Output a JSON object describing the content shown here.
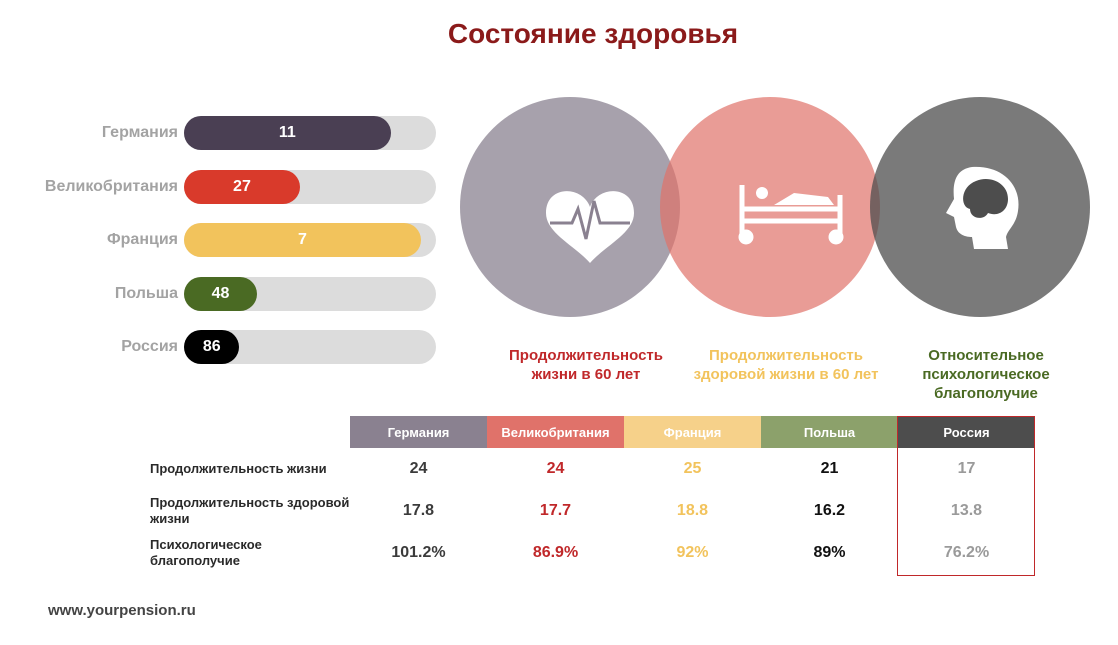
{
  "title": "Состояние здоровья",
  "footer": "www.yourpension.ru",
  "chart_data": [
    {
      "type": "bar",
      "orientation": "horizontal",
      "categories": [
        "Германия",
        "Великобритания",
        "Франция",
        "Польша",
        "Россия"
      ],
      "values": [
        11,
        27,
        7,
        48,
        86
      ],
      "bar_fill_fraction": [
        0.82,
        0.46,
        0.94,
        0.29,
        0.22
      ],
      "colors": [
        "#4a3f53",
        "#d93a2b",
        "#f2c35c",
        "#4a6a23",
        "#000000"
      ]
    },
    {
      "type": "table",
      "columns": [
        "Германия",
        "Великобритания",
        "Франция",
        "Польша",
        "Россия"
      ],
      "column_colors": [
        "#8a8190",
        "#e0726a",
        "#f6d18a",
        "#8ca16b",
        "#4d4d4d"
      ],
      "value_colors": [
        "#3b3b3b",
        "#c0282a",
        "#f2c35c",
        "#111111",
        "#9a9a9a"
      ],
      "rows": [
        {
          "label": "Продолжительность жизни",
          "values": [
            "24",
            "24",
            "25",
            "21",
            "17"
          ]
        },
        {
          "label": "Продолжительность здоровой жизни",
          "values": [
            "17.8",
            "17.7",
            "18.8",
            "16.2",
            "13.8"
          ]
        },
        {
          "label": "Психологическое благополучие",
          "values": [
            "101.2%",
            "86.9%",
            "92%",
            "89%",
            "76.2%"
          ]
        }
      ],
      "highlighted_column": "Россия"
    }
  ],
  "venn": [
    {
      "caption": "Продолжительность жизни в 60 лет",
      "color": "#8a8190",
      "caption_color": "#c0282a",
      "icon": "heart-pulse-icon"
    },
    {
      "caption": "Продолжительность здоровой жизни в 60 лет",
      "color": "#e0726a",
      "caption_color": "#f2c35c",
      "icon": "hospital-bed-icon"
    },
    {
      "caption": "Относительное психологическое благополучие",
      "color": "#4d4d4d",
      "caption_color": "#4a6a23",
      "icon": "head-brain-icon"
    }
  ]
}
